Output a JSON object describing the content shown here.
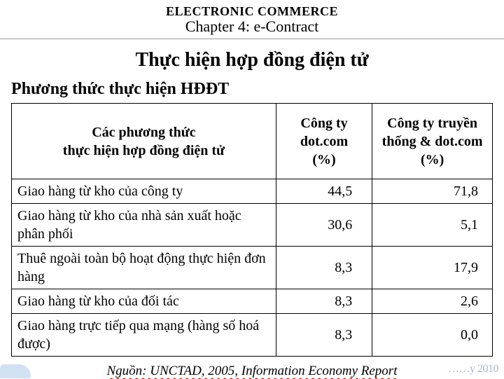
{
  "header": {
    "super_title": "ELECTRONIC COMMERCE",
    "chapter": "Chapter 4: e-Contract"
  },
  "slide_title": "Thực hiện hợp đồng điện tử",
  "section_title": "Phương thức thực hiện HĐĐT",
  "table": {
    "columns": [
      {
        "lines": [
          "Các phương thức",
          "thực hiện hợp đồng điện tử"
        ]
      },
      {
        "lines": [
          "Công ty",
          "dot.com",
          "(%)"
        ]
      },
      {
        "lines": [
          "Công ty truyền",
          "thống & dot.com",
          "(%)"
        ]
      }
    ],
    "rows": [
      {
        "method": "Giao hàng từ kho của công ty",
        "v1": "44,5",
        "v2": "71,8"
      },
      {
        "method": "Giao hàng từ kho của nhà sản xuất hoặc phân phối",
        "v1": "30,6",
        "v2": "5,1"
      },
      {
        "method": "Thuê ngoài toàn bộ hoạt động thực hiện đơn hàng",
        "v1": "8,3",
        "v2": "17,9"
      },
      {
        "method": "Giao hàng từ kho của đối tác",
        "v1": "8,3",
        "v2": "2,6"
      },
      {
        "method": "Giao hàng trực tiếp qua mạng (hàng số hoá được)",
        "v1": "8,3",
        "v2": "0,0"
      }
    ]
  },
  "source": "Nguồn: UNCTAD, 2005, Information Economy Report",
  "watermark": "……y 2010",
  "styling": {
    "page_bg": "#ffffff",
    "text_color": "#000000",
    "border_color": "#000000",
    "wavy_underline_color": "#c00",
    "corner_color": "#bcd4f0",
    "watermark_color": "#0a2a8a",
    "fonts": {
      "super_title_pt": 18,
      "chapter_pt": 22,
      "slide_title_pt": 28,
      "section_title_pt": 24,
      "table_cell_pt": 20,
      "source_pt": 19
    },
    "col_widths_pct": [
      55,
      20,
      25
    ]
  }
}
